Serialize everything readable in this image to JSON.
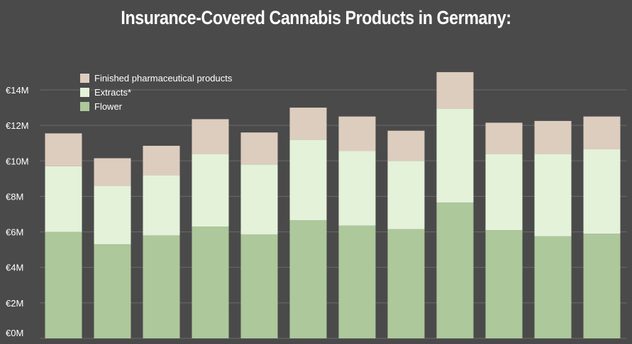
{
  "chart_data": {
    "type": "bar",
    "stacked": true,
    "title": "Insurance-Covered Cannabis Products in Germany:",
    "xlabel": "",
    "ylabel": "",
    "ylim": [
      0,
      15
    ],
    "y_ticks": [
      "€0M",
      "€2M",
      "€4M",
      "€6M",
      "€8M",
      "€10M",
      "€12M",
      "€14M"
    ],
    "y_tick_values": [
      0,
      2,
      4,
      6,
      8,
      10,
      12,
      14
    ],
    "grid": "horizontal",
    "legend_position": "top-left",
    "series": [
      {
        "name": "Flower",
        "color": "#adc89b",
        "values": [
          6.0,
          5.3,
          5.8,
          6.3,
          5.85,
          6.65,
          6.35,
          6.15,
          7.65,
          6.1,
          5.75,
          5.9
        ]
      },
      {
        "name": "Extracts*",
        "color": "#e4f2da",
        "values": [
          3.7,
          3.3,
          3.4,
          4.1,
          3.95,
          4.55,
          4.2,
          3.85,
          5.3,
          4.3,
          4.65,
          4.75
        ]
      },
      {
        "name": "Finished pharmaceutical products",
        "color": "#ddcdbf",
        "values": [
          1.85,
          1.55,
          1.65,
          1.95,
          1.8,
          1.8,
          1.95,
          1.7,
          2.05,
          1.75,
          1.85,
          1.85
        ]
      }
    ],
    "legend_order": [
      "Finished pharmaceutical products",
      "Extracts*",
      "Flower"
    ]
  }
}
